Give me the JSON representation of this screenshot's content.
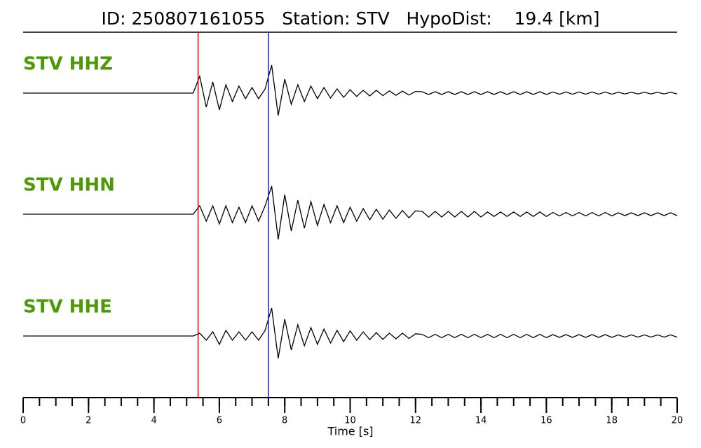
{
  "chart_data": {
    "type": "seismogram",
    "title": "ID: 250807161055   Station: STV   HypoDist:    19.4 [km]",
    "xlabel": "Time [s]",
    "xlim": [
      0,
      20
    ],
    "xticks": [
      0,
      2,
      4,
      6,
      8,
      10,
      12,
      14,
      16,
      18,
      20
    ],
    "xminorticks": [
      0,
      0.5,
      1,
      1.5,
      2,
      2.5,
      3,
      3.5,
      4,
      4.5,
      5,
      5.5,
      6,
      6.5,
      7,
      7.5,
      8,
      8.5,
      9,
      9.5,
      10,
      10.5,
      11,
      11.5,
      12,
      12.5,
      13,
      13.5,
      14,
      14.5,
      15,
      15.5,
      16,
      16.5,
      17,
      17.5,
      18,
      18.5,
      19,
      19.5,
      20
    ],
    "picks": [
      {
        "value": 5.35,
        "color": "#e00000"
      },
      {
        "value": 7.5,
        "color": "#1f1fbf"
      }
    ],
    "label_color": "#4e9a06",
    "x": [
      0,
      0.2,
      0.4,
      0.6,
      0.8,
      1,
      1.2,
      1.4,
      1.6,
      1.8,
      2,
      2.2,
      2.4,
      2.6,
      2.8,
      3,
      3.2,
      3.4,
      3.6,
      3.8,
      4,
      4.2,
      4.4,
      4.6,
      4.8,
      5,
      5.2,
      5.4,
      5.6,
      5.8,
      6,
      6.2,
      6.4,
      6.6,
      6.8,
      7,
      7.2,
      7.4,
      7.6,
      7.8,
      8,
      8.2,
      8.4,
      8.6,
      8.8,
      9,
      9.2,
      9.4,
      9.6,
      9.8,
      10,
      10.2,
      10.4,
      10.6,
      10.8,
      11,
      11.2,
      11.4,
      11.6,
      11.8,
      12,
      12.2,
      12.4,
      12.6,
      12.8,
      13,
      13.2,
      13.4,
      13.6,
      13.8,
      14,
      14.2,
      14.4,
      14.6,
      14.8,
      15,
      15.2,
      15.4,
      15.6,
      15.8,
      16,
      16.2,
      16.4,
      16.6,
      16.8,
      17,
      17.2,
      17.4,
      17.6,
      17.8,
      18,
      18.2,
      18.4,
      18.6,
      18.8,
      19,
      19.2,
      19.4,
      19.6,
      19.8,
      20
    ],
    "series": [
      {
        "name": "STV HHZ",
        "color": "#000000",
        "values": [
          0,
          0,
          0,
          0,
          0,
          0,
          0,
          0,
          0,
          0,
          0,
          0,
          0,
          0,
          0,
          0,
          0,
          0,
          0,
          0,
          0,
          0,
          0,
          0,
          0,
          0,
          0,
          0.6,
          -0.5,
          0.4,
          -0.6,
          0.3,
          -0.3,
          0.25,
          -0.2,
          0.2,
          -0.2,
          0.15,
          1.0,
          -0.8,
          0.5,
          -0.4,
          0.3,
          -0.3,
          0.25,
          -0.2,
          0.2,
          -0.18,
          0.15,
          -0.15,
          0.12,
          -0.12,
          0.1,
          -0.1,
          0.1,
          -0.09,
          0.08,
          -0.08,
          0.07,
          -0.07,
          0.06,
          0.05,
          -0.05,
          0.05,
          -0.05,
          0.05,
          -0.05,
          0.05,
          -0.05,
          0.05,
          -0.05,
          0.05,
          -0.05,
          0.05,
          -0.05,
          0.05,
          -0.05,
          0.05,
          -0.05,
          0.05,
          -0.05,
          0.04,
          -0.04,
          0.04,
          -0.04,
          0.04,
          -0.04,
          0.04,
          -0.04,
          0.04,
          -0.04,
          0.03,
          -0.03,
          0.03,
          -0.03,
          0.03,
          -0.03,
          0.03,
          -0.03,
          0.03,
          -0.03
        ]
      },
      {
        "name": "STV HHN",
        "color": "#000000",
        "values": [
          0,
          0,
          0,
          0,
          0,
          0,
          0,
          0,
          0,
          0,
          0,
          0,
          0,
          0,
          0,
          0,
          0,
          0,
          0,
          0,
          0,
          0,
          0,
          0,
          0,
          0,
          0,
          0.3,
          -0.25,
          0.3,
          -0.35,
          0.3,
          -0.3,
          0.25,
          -0.3,
          0.3,
          -0.25,
          0.3,
          1.0,
          -0.9,
          0.7,
          -0.6,
          0.5,
          -0.5,
          0.45,
          -0.4,
          0.35,
          -0.3,
          0.3,
          -0.3,
          0.25,
          -0.25,
          0.2,
          -0.2,
          0.18,
          -0.18,
          0.15,
          -0.15,
          0.13,
          -0.13,
          0.12,
          0.1,
          -0.1,
          0.1,
          -0.1,
          0.1,
          -0.1,
          0.1,
          -0.1,
          0.1,
          -0.1,
          0.08,
          -0.08,
          0.08,
          -0.08,
          0.08,
          -0.08,
          0.08,
          -0.08,
          0.08,
          -0.08,
          0.06,
          -0.06,
          0.06,
          -0.06,
          0.06,
          -0.06,
          0.06,
          -0.06,
          0.06,
          -0.06,
          0.05,
          -0.05,
          0.05,
          -0.05,
          0.05,
          -0.05,
          0.05,
          -0.05,
          0.05,
          -0.05
        ]
      },
      {
        "name": "STV HHE",
        "color": "#000000",
        "values": [
          0,
          0,
          0,
          0,
          0,
          0,
          0,
          0,
          0,
          0,
          0,
          0,
          0,
          0,
          0,
          0,
          0,
          0,
          0,
          0,
          0,
          0,
          0,
          0,
          0,
          0,
          0,
          0.1,
          -0.15,
          0.15,
          -0.3,
          0.2,
          -0.15,
          0.15,
          -0.15,
          0.15,
          -0.15,
          0.2,
          1.0,
          -0.8,
          0.6,
          -0.5,
          0.4,
          -0.35,
          0.3,
          -0.3,
          0.25,
          -0.25,
          0.2,
          -0.2,
          0.18,
          -0.15,
          0.15,
          -0.13,
          0.12,
          -0.12,
          0.1,
          -0.1,
          0.1,
          -0.09,
          0.08,
          0.06,
          -0.06,
          0.06,
          -0.06,
          0.06,
          -0.06,
          0.06,
          -0.06,
          0.06,
          -0.06,
          0.06,
          -0.06,
          0.06,
          -0.06,
          0.06,
          -0.06,
          0.06,
          -0.06,
          0.06,
          -0.06,
          0.05,
          -0.05,
          0.05,
          -0.05,
          0.05,
          -0.05,
          0.05,
          -0.05,
          0.05,
          -0.05,
          0.04,
          -0.04,
          0.04,
          -0.04,
          0.04,
          -0.04,
          0.04,
          -0.04,
          0.04,
          -0.04
        ]
      }
    ]
  }
}
